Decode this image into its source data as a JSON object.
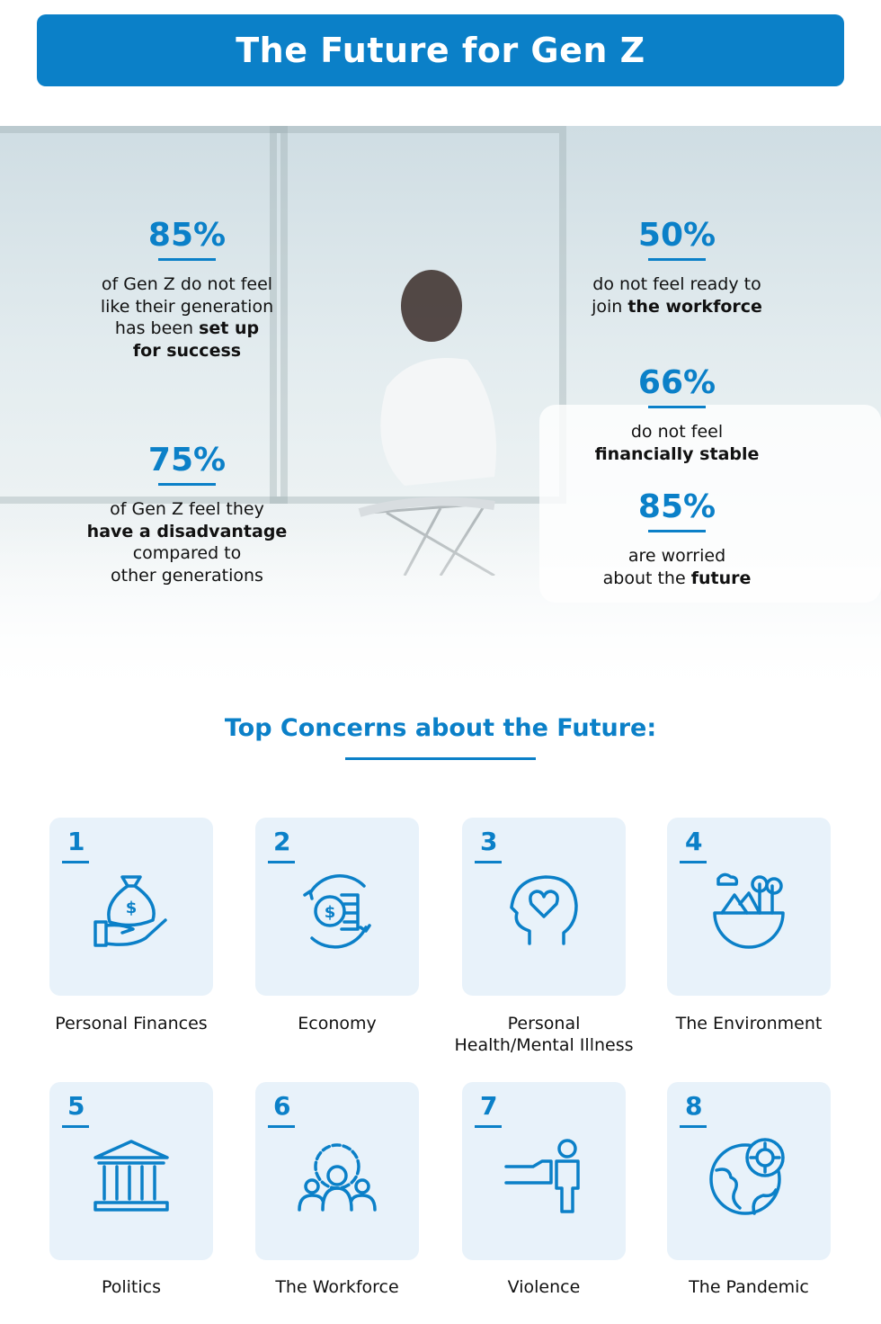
{
  "title": "The Future for Gen Z",
  "accent": "#0b80c8",
  "stats": [
    {
      "value": "85%",
      "lines": [
        [
          {
            "t": "of Gen Z do not feel"
          }
        ],
        [
          {
            "t": "like their generation"
          }
        ],
        [
          {
            "t": "has been "
          },
          {
            "t": "set up",
            "b": true
          }
        ],
        [
          {
            "t": "for success",
            "b": true
          }
        ]
      ]
    },
    {
      "value": "75%",
      "lines": [
        [
          {
            "t": "of Gen Z feel they"
          }
        ],
        [
          {
            "t": "have a disadvantage",
            "b": true
          }
        ],
        [
          {
            "t": "compared to"
          }
        ],
        [
          {
            "t": "other generations"
          }
        ]
      ]
    },
    {
      "value": "50%",
      "lines": [
        [
          {
            "t": "do not feel ready to"
          }
        ],
        [
          {
            "t": "join "
          },
          {
            "t": "the workforce",
            "b": true
          }
        ]
      ]
    },
    {
      "value": "66%",
      "lines": [
        [
          {
            "t": "do not feel"
          }
        ],
        [
          {
            "t": "financially stable",
            "b": true
          }
        ]
      ]
    },
    {
      "value": "85%",
      "lines": [
        [
          {
            "t": "are worried"
          }
        ],
        [
          {
            "t": "about the "
          },
          {
            "t": "future",
            "b": true
          }
        ]
      ]
    }
  ],
  "concerns_title": "Top Concerns about the Future:",
  "concerns": [
    {
      "rank": "1",
      "label": "Personal Finances",
      "icon": "money-bag-hand-icon"
    },
    {
      "rank": "2",
      "label": "Economy",
      "icon": "coins-cycle-icon"
    },
    {
      "rank": "3",
      "label": "Personal Health/Mental Illness",
      "icon": "head-heart-icon"
    },
    {
      "rank": "4",
      "label": "The Environment",
      "icon": "earth-nature-icon"
    },
    {
      "rank": "5",
      "label": "Politics",
      "icon": "government-building-icon"
    },
    {
      "rank": "6",
      "label": "The Workforce",
      "icon": "team-gear-icon"
    },
    {
      "rank": "7",
      "label": "Violence",
      "icon": "fist-person-icon"
    },
    {
      "rank": "8",
      "label": "The Pandemic",
      "icon": "globe-virus-icon"
    }
  ]
}
